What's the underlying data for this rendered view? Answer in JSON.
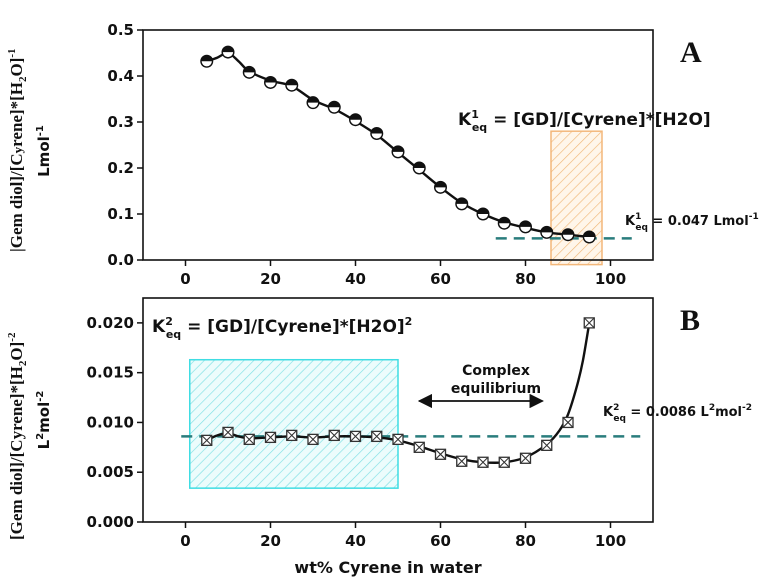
{
  "chart_data": [
    {
      "type": "scatter",
      "panel_label": "A",
      "ylabel_line1_parts": [
        "|Gem diol]/[C",
        "y",
        "rene]*[H",
        "2",
        "O]",
        "-1"
      ],
      "ylabel_line2_parts": [
        "Lmol",
        "-1"
      ],
      "xlim": [
        -10,
        110
      ],
      "ylim": [
        0.0,
        0.5
      ],
      "xticks": [
        0,
        20,
        40,
        60,
        80,
        100
      ],
      "yticks": [
        0.0,
        0.1,
        0.2,
        0.3,
        0.4,
        0.5
      ],
      "ytick_labels": [
        "0.0",
        "0.1",
        "0.2",
        "0.3",
        "0.4",
        "0.5"
      ],
      "series": [
        {
          "marker": "half-filled circle",
          "x": [
            5,
            10,
            15,
            20,
            25,
            30,
            35,
            40,
            45,
            50,
            55,
            60,
            65,
            70,
            75,
            80,
            85,
            90,
            95
          ],
          "y": [
            0.432,
            0.452,
            0.408,
            0.386,
            0.38,
            0.342,
            0.332,
            0.305,
            0.275,
            0.235,
            0.2,
            0.158,
            0.122,
            0.1,
            0.08,
            0.072,
            0.06,
            0.055,
            0.05
          ]
        }
      ],
      "fit_curve": {
        "x": [
          5,
          7.5,
          10,
          12.5,
          15,
          20,
          25,
          30,
          35,
          40,
          45,
          50,
          55,
          60,
          65,
          70,
          75,
          80,
          85,
          90,
          95
        ],
        "y": [
          0.432,
          0.44,
          0.45,
          0.432,
          0.41,
          0.39,
          0.378,
          0.348,
          0.328,
          0.302,
          0.272,
          0.234,
          0.196,
          0.158,
          0.124,
          0.1,
          0.082,
          0.07,
          0.06,
          0.055,
          0.05
        ]
      },
      "reference_line": {
        "y": 0.047
      },
      "highlight_region": {
        "x": [
          86,
          98
        ],
        "y": [
          -0.01,
          0.28
        ]
      },
      "equation": {
        "parts": [
          "K",
          "1",
          "eq",
          " = [GD]/[Cyrene]*[H2O]"
        ]
      },
      "value_label": {
        "parts": [
          "K",
          "1",
          "eq",
          " = 0.047 Lmol",
          "-1"
        ]
      }
    },
    {
      "type": "scatter",
      "panel_label": "B",
      "ylabel_line1_parts": [
        "[Gem diol]/[Cyrene]*[H",
        "2",
        "O]",
        "-2"
      ],
      "ylabel_line2_parts": [
        "L",
        "2",
        "mol",
        "-2"
      ],
      "xlabel": "wt% Cyrene in water",
      "xlim": [
        -10,
        110
      ],
      "ylim": [
        0.0,
        0.0225
      ],
      "xticks": [
        0,
        20,
        40,
        60,
        80,
        100
      ],
      "xtick_labels": [
        "0",
        "20",
        "40",
        "60",
        "80",
        "100"
      ],
      "yticks": [
        0.0,
        0.005,
        0.01,
        0.015,
        0.02
      ],
      "ytick_labels": [
        "0.000",
        "0.005",
        "0.010",
        "0.015",
        "0.020"
      ],
      "series": [
        {
          "marker": "crossed square",
          "x": [
            5,
            10,
            15,
            20,
            25,
            30,
            35,
            40,
            45,
            50,
            55,
            60,
            65,
            70,
            75,
            80,
            85,
            90,
            95
          ],
          "y": [
            0.0082,
            0.009,
            0.0083,
            0.0085,
            0.0087,
            0.0083,
            0.0087,
            0.0086,
            0.0086,
            0.0083,
            0.0075,
            0.0068,
            0.0061,
            0.006,
            0.006,
            0.0064,
            0.0077,
            0.01,
            0.02
          ]
        }
      ],
      "fit_curve": {
        "x": [
          5,
          7.5,
          10,
          12.5,
          15,
          20,
          25,
          30,
          35,
          40,
          45,
          50,
          55,
          60,
          65,
          70,
          75,
          80,
          85,
          88,
          90,
          92,
          93.5,
          95
        ],
        "y": [
          0.0082,
          0.0087,
          0.0089,
          0.0086,
          0.0084,
          0.0085,
          0.0086,
          0.0085,
          0.0086,
          0.0086,
          0.0085,
          0.0082,
          0.0076,
          0.0069,
          0.0063,
          0.006,
          0.006,
          0.0065,
          0.0078,
          0.0092,
          0.0108,
          0.0135,
          0.0162,
          0.02
        ]
      },
      "reference_line": {
        "y": 0.0086
      },
      "highlight_region": {
        "x": [
          1,
          50
        ],
        "y": [
          0.0034,
          0.0163
        ]
      },
      "complex_label_lines": [
        "Complex",
        "equilibrium"
      ],
      "arrow_span": [
        55,
        84
      ],
      "equation": {
        "parts": [
          "K",
          "2",
          "eq",
          " = [GD]/[Cyrene]*[H2O]",
          "2"
        ]
      },
      "value_label": {
        "parts": [
          "K",
          "2",
          "eq",
          " = 0.0086 L",
          "2",
          "mol",
          "-2"
        ]
      }
    }
  ]
}
